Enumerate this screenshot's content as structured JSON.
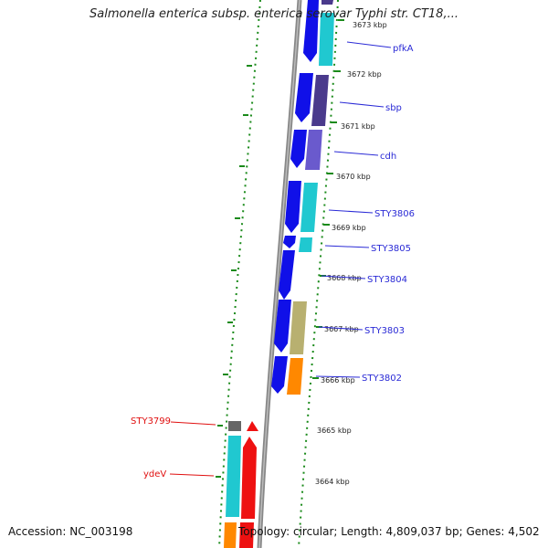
{
  "title": "Salmonella enterica subsp. enterica serovar Typhi str. CT18,...",
  "footer": {
    "accession": "Accession: NC_003198",
    "summary": "Topology: circular; Length: 4,809,037 bp; Genes: 4,502"
  },
  "ticks": [
    {
      "label": "3673 kbp"
    },
    {
      "label": "3672 kbp"
    },
    {
      "label": "3671 kbp"
    },
    {
      "label": "3670 kbp"
    },
    {
      "label": "3669 kbp"
    },
    {
      "label": "3668 kbp"
    },
    {
      "label": "3667 kbp"
    },
    {
      "label": "3666 kbp"
    },
    {
      "label": "3665 kbp"
    },
    {
      "label": "3664 kbp"
    }
  ],
  "genes": [
    {
      "name": "pfkA"
    },
    {
      "name": "sbp"
    },
    {
      "name": "cdh"
    },
    {
      "name": "STY3806"
    },
    {
      "name": "STY3805"
    },
    {
      "name": "STY3804"
    },
    {
      "name": "STY3803"
    },
    {
      "name": "STY3802"
    },
    {
      "name": "STY3799"
    },
    {
      "name": "ydeV"
    }
  ],
  "colors": {
    "forward_strand": "#1010e8",
    "cyan_feature": "#20c8d0",
    "purple_feature": "#4a3a8c",
    "violet_feature": "#6a5acd",
    "khaki_feature": "#b8b070",
    "orange_feature": "#ff8800",
    "red_feature": "#ee1111",
    "gray_feature": "#666666",
    "dotted_track": "#1a8a1a",
    "backbone": "#888888"
  }
}
